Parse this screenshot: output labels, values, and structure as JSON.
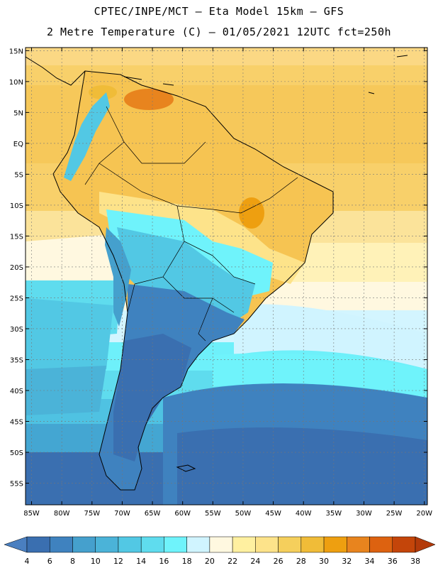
{
  "header": {
    "title_line1": "CPTEC/INPE/MCT –  Eta Model 15km – GFS",
    "title_line2": "2 Metre Temperature (C) – 01/05/2021 12UTC fct=250h"
  },
  "map": {
    "lat_labels": [
      "15N",
      "10N",
      "5N",
      "EQ",
      "5S",
      "10S",
      "15S",
      "20S",
      "25S",
      "30S",
      "35S",
      "40S",
      "45S",
      "50S",
      "55S"
    ],
    "lon_labels": [
      "85W",
      "80W",
      "75W",
      "70W",
      "65W",
      "60W",
      "55W",
      "50W",
      "45W",
      "40W",
      "35W",
      "30W",
      "25W",
      "20W"
    ],
    "lat_range": [
      15.5,
      -58.5
    ],
    "lon_range": [
      -86,
      -19.5
    ],
    "grid": true,
    "field": "2 metre temperature"
  },
  "colorbar": {
    "ticks": [
      "4",
      "6",
      "8",
      "10",
      "12",
      "14",
      "16",
      "18",
      "20",
      "22",
      "24",
      "26",
      "28",
      "30",
      "32",
      "34",
      "36",
      "38"
    ],
    "colors": [
      "#3a6fb0",
      "#3f82bf",
      "#45a0cd",
      "#4bb3d8",
      "#52c8e4",
      "#5fdcee",
      "#6ff3fb",
      "#d0f4ff",
      "#fff8e0",
      "#fff0a0",
      "#fde38a",
      "#f5cf5c",
      "#f0bc38",
      "#ee9f10",
      "#e8841e",
      "#dd6210",
      "#c4450a"
    ],
    "low_color": "#4a7fc0",
    "high_color": "#b33a0a"
  }
}
